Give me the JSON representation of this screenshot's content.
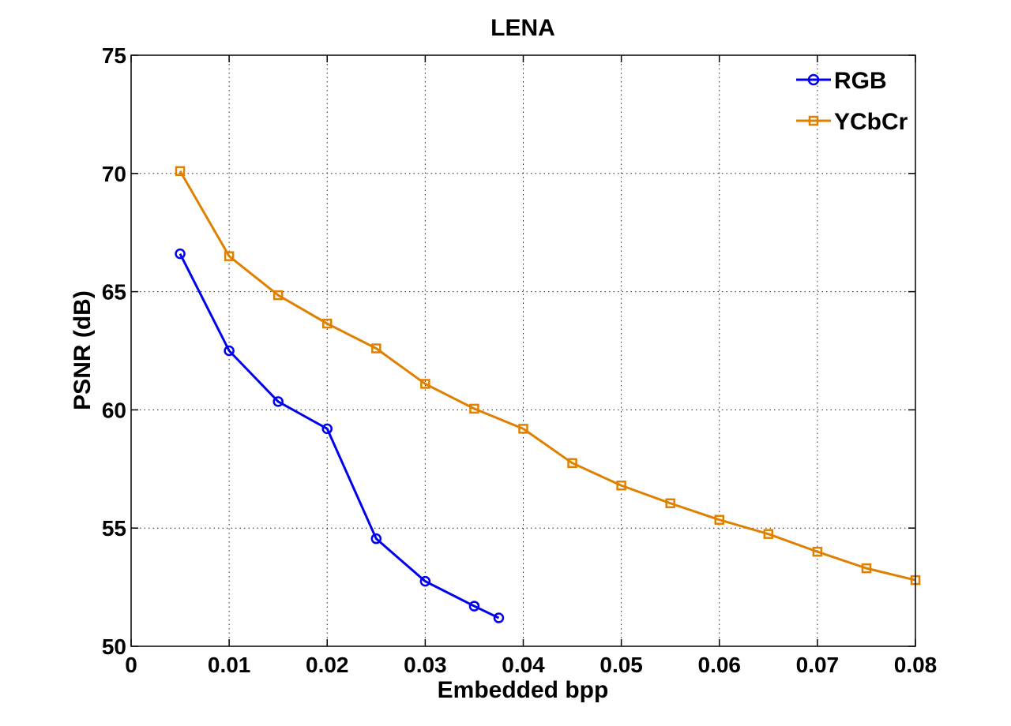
{
  "chart_data": {
    "type": "line",
    "title": "LENA",
    "xlabel": "Embedded bpp",
    "ylabel": "PSNR (dB)",
    "xlim": [
      0,
      0.08
    ],
    "ylim": [
      50,
      75
    ],
    "xticks": [
      0,
      0.01,
      0.02,
      0.03,
      0.04,
      0.05,
      0.06,
      0.07,
      0.08
    ],
    "xtick_labels": [
      "0",
      "0.01",
      "0.02",
      "0.03",
      "0.04",
      "0.05",
      "0.06",
      "0.07",
      "0.08"
    ],
    "yticks": [
      50,
      55,
      60,
      65,
      70,
      75
    ],
    "ytick_labels": [
      "50",
      "55",
      "60",
      "65",
      "70",
      "75"
    ],
    "grid": true,
    "legend_position": "top-right",
    "series": [
      {
        "name": "RGB",
        "color": "#0000ee",
        "marker": "circle",
        "x": [
          0.005,
          0.01,
          0.015,
          0.02,
          0.025,
          0.03,
          0.035,
          0.0375
        ],
        "y": [
          66.6,
          62.5,
          60.35,
          59.2,
          54.55,
          52.75,
          51.7,
          51.2
        ]
      },
      {
        "name": "YCbCr",
        "color": "#e08000",
        "marker": "square",
        "x": [
          0.005,
          0.01,
          0.015,
          0.02,
          0.025,
          0.03,
          0.035,
          0.04,
          0.045,
          0.05,
          0.055,
          0.06,
          0.065,
          0.07,
          0.075,
          0.08
        ],
        "y": [
          70.1,
          66.5,
          64.85,
          63.65,
          62.6,
          61.1,
          60.05,
          59.2,
          57.75,
          56.8,
          56.05,
          55.35,
          54.75,
          54.0,
          53.3,
          52.8
        ]
      }
    ]
  }
}
